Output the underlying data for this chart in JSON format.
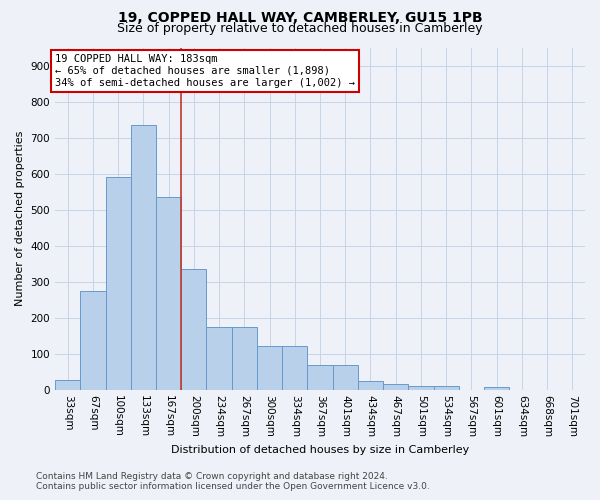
{
  "title": "19, COPPED HALL WAY, CAMBERLEY, GU15 1PB",
  "subtitle": "Size of property relative to detached houses in Camberley",
  "xlabel": "Distribution of detached houses by size in Camberley",
  "ylabel": "Number of detached properties",
  "footnote1": "Contains HM Land Registry data © Crown copyright and database right 2024.",
  "footnote2": "Contains public sector information licensed under the Open Government Licence v3.0.",
  "annotation_line1": "19 COPPED HALL WAY: 183sqm",
  "annotation_line2": "← 65% of detached houses are smaller (1,898)",
  "annotation_line3": "34% of semi-detached houses are larger (1,002) →",
  "bar_labels": [
    "33sqm",
    "67sqm",
    "100sqm",
    "133sqm",
    "167sqm",
    "200sqm",
    "234sqm",
    "267sqm",
    "300sqm",
    "334sqm",
    "367sqm",
    "401sqm",
    "434sqm",
    "467sqm",
    "501sqm",
    "534sqm",
    "567sqm",
    "601sqm",
    "634sqm",
    "668sqm",
    "701sqm"
  ],
  "bar_values": [
    27,
    275,
    590,
    735,
    535,
    335,
    175,
    175,
    120,
    120,
    68,
    68,
    25,
    15,
    10,
    10,
    0,
    8,
    0,
    0,
    0
  ],
  "bar_color": "#b8d0ea",
  "bar_edge_color": "#6699cc",
  "vline_color": "#c0392b",
  "vline_x": 4.5,
  "bg_color": "#eef2f8",
  "grid_color": "#c5d5e8",
  "ylim": [
    0,
    950
  ],
  "yticks": [
    0,
    100,
    200,
    300,
    400,
    500,
    600,
    700,
    800,
    900
  ],
  "title_fontsize": 10,
  "subtitle_fontsize": 9,
  "ylabel_fontsize": 8,
  "xlabel_fontsize": 8,
  "tick_fontsize": 7.5,
  "annot_fontsize": 7.5,
  "footnote_fontsize": 6.5
}
